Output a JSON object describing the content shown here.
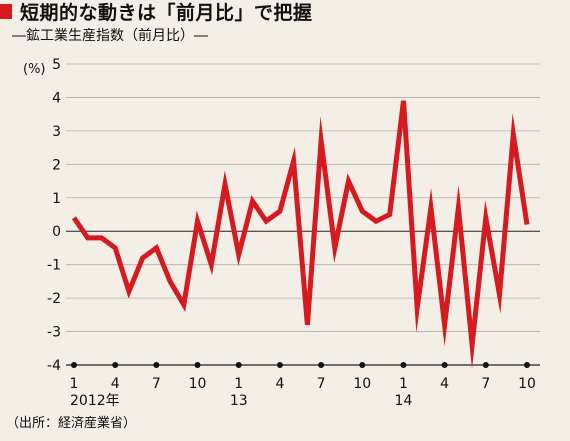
{
  "header": {
    "title": "短期的な動きは「前月比」で把握",
    "subtitle": "―鉱工業生産指数（前月比）―"
  },
  "source": "（出所：経済産業省）",
  "chart_data": {
    "type": "line",
    "title": "短期的な動きは「前月比」で把握",
    "subtitle": "鉱工業生産指数（前月比）",
    "ylabel": "(%)",
    "ylim": [
      -4,
      5
    ],
    "yticks": [
      5,
      4,
      3,
      2,
      1,
      0,
      -1,
      -2,
      -3,
      -4
    ],
    "grid": true,
    "line_color": "#d71920",
    "x": [
      "2012-01",
      "2012-02",
      "2012-03",
      "2012-04",
      "2012-05",
      "2012-06",
      "2012-07",
      "2012-08",
      "2012-09",
      "2012-10",
      "2012-11",
      "2012-12",
      "2013-01",
      "2013-02",
      "2013-03",
      "2013-04",
      "2013-05",
      "2013-06",
      "2013-07",
      "2013-08",
      "2013-09",
      "2013-10",
      "2013-11",
      "2013-12",
      "2014-01",
      "2014-02",
      "2014-03",
      "2014-04",
      "2014-05",
      "2014-06",
      "2014-07",
      "2014-08",
      "2014-09",
      "2014-10"
    ],
    "values": [
      0.4,
      -0.2,
      -0.2,
      -0.5,
      -1.8,
      -0.8,
      -0.5,
      -1.5,
      -2.2,
      0.3,
      -1.0,
      1.4,
      -0.7,
      0.9,
      0.3,
      0.6,
      2.1,
      -2.8,
      2.7,
      -0.5,
      1.5,
      0.6,
      0.3,
      0.5,
      3.9,
      -2.3,
      0.7,
      -2.8,
      0.7,
      -3.4,
      0.4,
      -1.9,
      2.9,
      0.2
    ],
    "x_tick_labels": [
      {
        "index": 0,
        "label": "1"
      },
      {
        "index": 3,
        "label": "4"
      },
      {
        "index": 6,
        "label": "7"
      },
      {
        "index": 9,
        "label": "10"
      },
      {
        "index": 12,
        "label": "1"
      },
      {
        "index": 15,
        "label": "4"
      },
      {
        "index": 18,
        "label": "7"
      },
      {
        "index": 21,
        "label": "10"
      },
      {
        "index": 24,
        "label": "1"
      },
      {
        "index": 27,
        "label": "4"
      },
      {
        "index": 30,
        "label": "7"
      },
      {
        "index": 33,
        "label": "10"
      }
    ],
    "year_labels": [
      {
        "index": 0,
        "label": "2012年"
      },
      {
        "index": 12,
        "label": "13"
      },
      {
        "index": 24,
        "label": "14"
      }
    ]
  }
}
